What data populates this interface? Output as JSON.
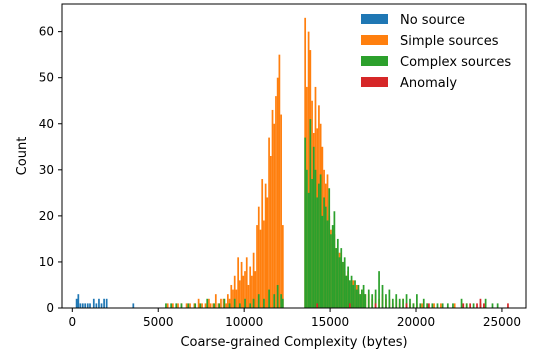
{
  "chart_data": {
    "type": "bar",
    "subtype": "histogram",
    "xlabel": "Coarse-grained Complexity (bytes)",
    "ylabel": "Count",
    "xlim": [
      -600,
      26400
    ],
    "ylim": [
      0,
      66
    ],
    "xticks": [
      0,
      5000,
      10000,
      15000,
      20000,
      25000
    ],
    "xtick_labels": [
      "0",
      "5000",
      "10000",
      "15000",
      "20000",
      "25000"
    ],
    "yticks": [
      0,
      10,
      20,
      30,
      40,
      50,
      60
    ],
    "ytick_labels": [
      "0",
      "10",
      "20",
      "30",
      "40",
      "50",
      "60"
    ],
    "grid": false,
    "legend_position": "top-right",
    "series": [
      {
        "name": "No source",
        "color": "#1f77b4",
        "bins": [
          [
            200,
            2
          ],
          [
            300,
            3
          ],
          [
            420,
            1
          ],
          [
            560,
            1
          ],
          [
            700,
            1
          ],
          [
            850,
            1
          ],
          [
            980,
            1
          ],
          [
            1200,
            2
          ],
          [
            1350,
            1
          ],
          [
            1500,
            2
          ],
          [
            1650,
            1
          ],
          [
            1800,
            2
          ],
          [
            1950,
            2
          ],
          [
            3500,
            1
          ]
        ]
      },
      {
        "name": "Simple sources",
        "color": "#ff7f0e",
        "bins": [
          [
            5500,
            1
          ],
          [
            5800,
            1
          ],
          [
            6100,
            1
          ],
          [
            6300,
            1
          ],
          [
            6600,
            1
          ],
          [
            6800,
            1
          ],
          [
            7050,
            1
          ],
          [
            7300,
            2
          ],
          [
            7500,
            1
          ],
          [
            7700,
            1
          ],
          [
            7900,
            2
          ],
          [
            8000,
            1
          ],
          [
            8150,
            1
          ],
          [
            8300,
            3
          ],
          [
            8450,
            1
          ],
          [
            8600,
            2
          ],
          [
            8750,
            2
          ],
          [
            8900,
            1
          ],
          [
            9000,
            3
          ],
          [
            9100,
            2
          ],
          [
            9200,
            5
          ],
          [
            9300,
            4
          ],
          [
            9400,
            7
          ],
          [
            9500,
            4
          ],
          [
            9600,
            11
          ],
          [
            9700,
            6
          ],
          [
            9800,
            10
          ],
          [
            9900,
            7
          ],
          [
            10000,
            8
          ],
          [
            10100,
            11
          ],
          [
            10200,
            5
          ],
          [
            10300,
            9
          ],
          [
            10400,
            7
          ],
          [
            10500,
            12
          ],
          [
            10600,
            8
          ],
          [
            10700,
            18
          ],
          [
            10800,
            22
          ],
          [
            10900,
            17
          ],
          [
            11000,
            28
          ],
          [
            11100,
            19
          ],
          [
            11200,
            27
          ],
          [
            11300,
            24
          ],
          [
            11400,
            37
          ],
          [
            11500,
            33
          ],
          [
            11600,
            43
          ],
          [
            11700,
            40
          ],
          [
            11800,
            46
          ],
          [
            11900,
            50
          ],
          [
            12000,
            55
          ],
          [
            12100,
            42
          ],
          [
            12200,
            18
          ],
          [
            13500,
            63
          ],
          [
            13600,
            48
          ],
          [
            13700,
            60
          ],
          [
            13800,
            56
          ],
          [
            13900,
            45
          ],
          [
            14000,
            38
          ],
          [
            14100,
            48
          ],
          [
            14200,
            39
          ],
          [
            14300,
            44
          ],
          [
            14400,
            40
          ],
          [
            14500,
            35
          ],
          [
            14600,
            30
          ],
          [
            14700,
            27
          ],
          [
            14800,
            29
          ],
          [
            14900,
            20
          ],
          [
            15000,
            17
          ],
          [
            15100,
            14
          ],
          [
            15200,
            16
          ],
          [
            15300,
            13
          ],
          [
            15400,
            11
          ],
          [
            15500,
            12
          ],
          [
            15600,
            9
          ],
          [
            15700,
            10
          ],
          [
            15800,
            8
          ],
          [
            15900,
            7
          ],
          [
            16000,
            8
          ],
          [
            16100,
            6
          ],
          [
            16200,
            5
          ],
          [
            16300,
            6
          ],
          [
            16400,
            4
          ],
          [
            16500,
            5
          ],
          [
            16600,
            4
          ],
          [
            16700,
            3
          ],
          [
            16800,
            4
          ],
          [
            16900,
            3
          ],
          [
            17000,
            3
          ],
          [
            17200,
            3
          ],
          [
            17400,
            2
          ],
          [
            17600,
            3
          ],
          [
            17800,
            2
          ],
          [
            18000,
            3
          ],
          [
            18200,
            2
          ],
          [
            18400,
            2
          ],
          [
            18600,
            1
          ],
          [
            18800,
            2
          ],
          [
            19000,
            1
          ],
          [
            19200,
            2
          ],
          [
            19400,
            1
          ],
          [
            19600,
            1
          ],
          [
            19800,
            1
          ],
          [
            20000,
            1
          ],
          [
            20300,
            1
          ],
          [
            20600,
            1
          ],
          [
            21000,
            1
          ],
          [
            21400,
            1
          ],
          [
            22200,
            1
          ],
          [
            22900,
            1
          ],
          [
            24000,
            1
          ]
        ]
      },
      {
        "name": "Complex sources",
        "color": "#2ca02c",
        "bins": [
          [
            5400,
            1
          ],
          [
            5700,
            1
          ],
          [
            6000,
            1
          ],
          [
            6300,
            1
          ],
          [
            6700,
            1
          ],
          [
            7100,
            1
          ],
          [
            7400,
            1
          ],
          [
            7800,
            2
          ],
          [
            8200,
            1
          ],
          [
            8500,
            1
          ],
          [
            8800,
            2
          ],
          [
            9100,
            1
          ],
          [
            9400,
            2
          ],
          [
            9700,
            1
          ],
          [
            10000,
            2
          ],
          [
            10300,
            1
          ],
          [
            10500,
            2
          ],
          [
            10800,
            3
          ],
          [
            11100,
            2
          ],
          [
            11400,
            4
          ],
          [
            11700,
            3
          ],
          [
            11900,
            5
          ],
          [
            12100,
            3
          ],
          [
            12200,
            2
          ],
          [
            13500,
            37
          ],
          [
            13600,
            30
          ],
          [
            13700,
            25
          ],
          [
            13800,
            41
          ],
          [
            13900,
            28
          ],
          [
            14000,
            35
          ],
          [
            14100,
            30
          ],
          [
            14200,
            24
          ],
          [
            14300,
            27
          ],
          [
            14400,
            29
          ],
          [
            14500,
            20
          ],
          [
            14600,
            24
          ],
          [
            14700,
            22
          ],
          [
            14800,
            19
          ],
          [
            14900,
            26
          ],
          [
            15000,
            16
          ],
          [
            15100,
            18
          ],
          [
            15200,
            21
          ],
          [
            15300,
            13
          ],
          [
            15400,
            15
          ],
          [
            15500,
            11
          ],
          [
            15600,
            13
          ],
          [
            15700,
            10
          ],
          [
            15800,
            11
          ],
          [
            15900,
            7
          ],
          [
            16000,
            9
          ],
          [
            16100,
            6
          ],
          [
            16200,
            7
          ],
          [
            16300,
            5
          ],
          [
            16400,
            6
          ],
          [
            16500,
            4
          ],
          [
            16600,
            5
          ],
          [
            16700,
            3
          ],
          [
            16800,
            4
          ],
          [
            16900,
            5
          ],
          [
            17000,
            3
          ],
          [
            17200,
            4
          ],
          [
            17400,
            3
          ],
          [
            17600,
            4
          ],
          [
            17800,
            8
          ],
          [
            18000,
            5
          ],
          [
            18200,
            3
          ],
          [
            18400,
            4
          ],
          [
            18600,
            2
          ],
          [
            18800,
            3
          ],
          [
            19000,
            2
          ],
          [
            19200,
            2
          ],
          [
            19400,
            3
          ],
          [
            19600,
            2
          ],
          [
            19800,
            1
          ],
          [
            20000,
            3
          ],
          [
            20200,
            1
          ],
          [
            20400,
            2
          ],
          [
            20600,
            1
          ],
          [
            20900,
            1
          ],
          [
            21200,
            1
          ],
          [
            21500,
            1
          ],
          [
            21800,
            1
          ],
          [
            22100,
            1
          ],
          [
            22600,
            2
          ],
          [
            22900,
            1
          ],
          [
            23300,
            1
          ],
          [
            23700,
            1
          ],
          [
            24000,
            2
          ],
          [
            24400,
            1
          ],
          [
            24700,
            1
          ]
        ]
      },
      {
        "name": "Anomaly",
        "color": "#d62728",
        "bins": [
          [
            14200,
            1
          ],
          [
            16100,
            1
          ],
          [
            17600,
            1
          ],
          [
            19400,
            1
          ],
          [
            20700,
            1
          ],
          [
            22700,
            1
          ],
          [
            23100,
            1
          ],
          [
            23500,
            1
          ],
          [
            23700,
            2
          ],
          [
            23900,
            1
          ],
          [
            25300,
            1
          ]
        ]
      }
    ]
  }
}
